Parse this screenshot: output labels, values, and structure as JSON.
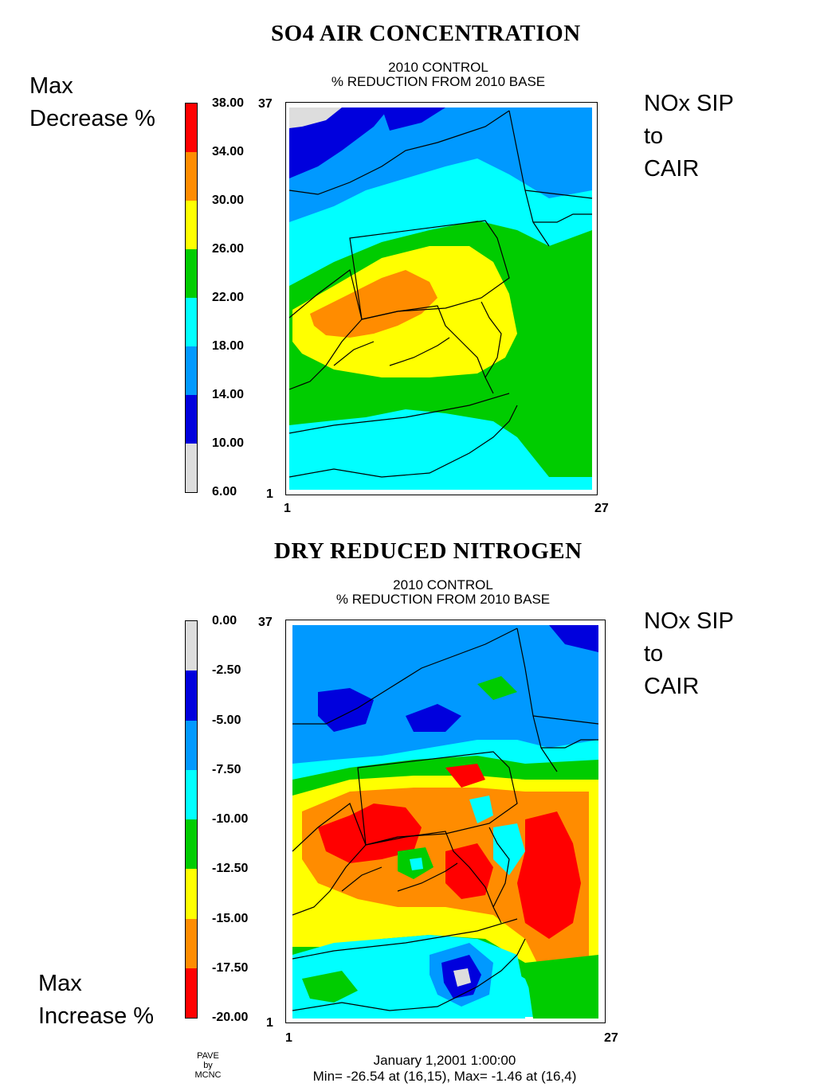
{
  "panel1": {
    "title": "SO4 AIR CONCENTRATION",
    "subtitle_1": "2010 CONTROL",
    "subtitle_2": "% REDUCTION FROM 2010 BASE",
    "left_note": "Max\nDecrease %",
    "right_note": "NOx SIP\nto\nCAIR",
    "legend_values": [
      "38.00",
      "34.00",
      "30.00",
      "26.00",
      "22.00",
      "18.00",
      "14.00",
      "10.00",
      "6.00"
    ],
    "legend_colors": [
      "#ff0000",
      "#ff8c00",
      "#ffff00",
      "#00cc00",
      "#00ffff",
      "#0099ff",
      "#0000dd",
      "#dddddd"
    ],
    "axis": {
      "y_top": "37",
      "y_bottom": "1",
      "x_left": "1",
      "x_right": "27"
    }
  },
  "panel2": {
    "title": "DRY REDUCED NITROGEN",
    "subtitle_1": "2010 CONTROL",
    "subtitle_2": "% REDUCTION FROM 2010 BASE",
    "left_note": "Max\nIncrease %",
    "right_note": "NOx SIP\nto\nCAIR",
    "legend_values": [
      "0.00",
      "-2.50",
      "-5.00",
      "-7.50",
      "-10.00",
      "-12.50",
      "-15.00",
      "-17.50",
      "-20.00"
    ],
    "legend_colors": [
      "#dddddd",
      "#0000dd",
      "#0099ff",
      "#00ffff",
      "#00cc00",
      "#ffff00",
      "#ff8c00",
      "#ff0000"
    ],
    "axis": {
      "y_top": "37",
      "y_bottom": "1",
      "x_left": "1",
      "x_right": "27"
    }
  },
  "footer": {
    "stamp": "PAVE\nby\nMCNC",
    "date": "January 1,2001 1:00:00",
    "minmax": "Min=  -26.54 at (16,15), Max=   -1.46 at (16,4)"
  }
}
